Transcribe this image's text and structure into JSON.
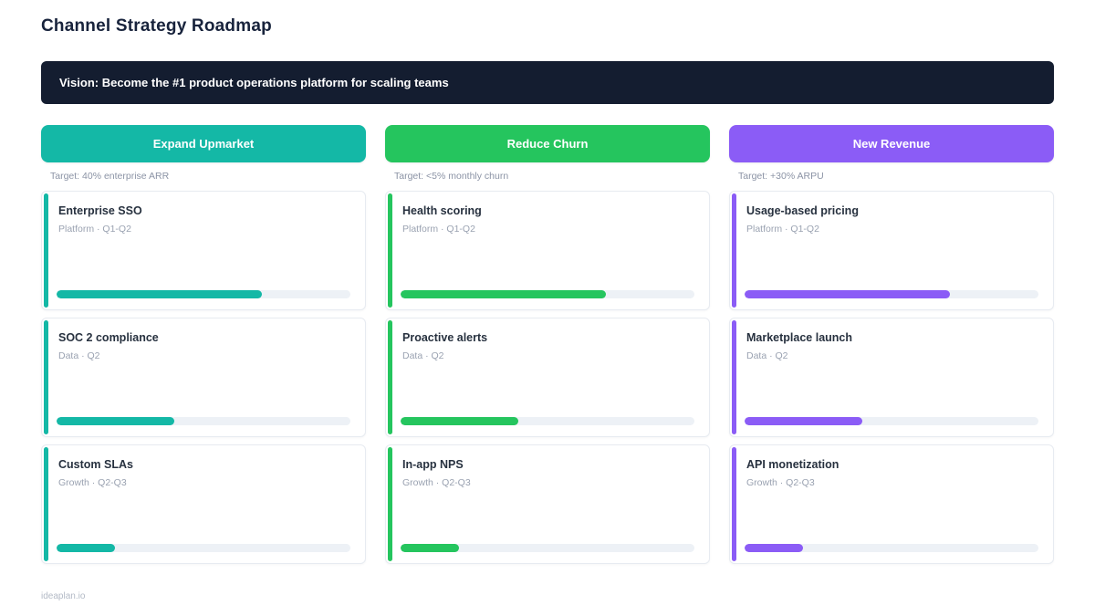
{
  "page": {
    "title": "Channel Strategy Roadmap",
    "vision": "Vision: Become the #1 product operations platform for scaling teams",
    "footer": "ideaplan.io"
  },
  "colors": {
    "banner_bg": "#141d30",
    "title_text": "#18233c",
    "progress_track": "#edf1f6"
  },
  "columns": [
    {
      "name": "Expand Upmarket",
      "target": "Target: 40% enterprise ARR",
      "color": "#14b8a6",
      "items": [
        {
          "title": "Enterprise SSO",
          "meta": "Platform · Q1-Q2",
          "progress": 70
        },
        {
          "title": "SOC 2 compliance",
          "meta": "Data · Q2",
          "progress": 40
        },
        {
          "title": "Custom SLAs",
          "meta": "Growth · Q2-Q3",
          "progress": 20
        }
      ]
    },
    {
      "name": "Reduce Churn",
      "target": "Target: <5% monthly churn",
      "color": "#25c55e",
      "items": [
        {
          "title": "Health scoring",
          "meta": "Platform · Q1-Q2",
          "progress": 70
        },
        {
          "title": "Proactive alerts",
          "meta": "Data · Q2",
          "progress": 40
        },
        {
          "title": "In-app NPS",
          "meta": "Growth · Q2-Q3",
          "progress": 20
        }
      ]
    },
    {
      "name": "New Revenue",
      "target": "Target: +30% ARPU",
      "color": "#8b5cf6",
      "items": [
        {
          "title": "Usage-based pricing",
          "meta": "Platform · Q1-Q2",
          "progress": 70
        },
        {
          "title": "Marketplace launch",
          "meta": "Data · Q2",
          "progress": 40
        },
        {
          "title": "API monetization",
          "meta": "Growth · Q2-Q3",
          "progress": 20
        }
      ]
    }
  ]
}
